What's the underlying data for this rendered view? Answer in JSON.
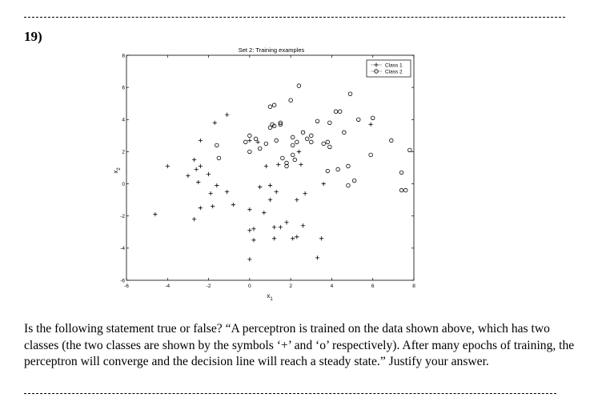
{
  "question": {
    "number": "19)",
    "text": "Is the following statement true or false? “A perceptron is trained on the data shown above, which has two classes (the two classes are shown by the symbols ‘+’ and ‘o’ respectively). After many epochs of training, the perceptron will converge and the decision line will reach a steady state.” Justify your answer."
  },
  "chart_data": {
    "type": "scatter",
    "title": "Set 2: Training examples",
    "xlabel": "x1",
    "ylabel": "x2",
    "xlim": [
      -6,
      8
    ],
    "ylim": [
      -6,
      8
    ],
    "xticks": [
      -6,
      -4,
      -2,
      0,
      2,
      4,
      6,
      8
    ],
    "yticks": [
      -6,
      -4,
      -2,
      0,
      2,
      4,
      6,
      8
    ],
    "grid": false,
    "legend": "top-right",
    "series": [
      {
        "name": "Class 1",
        "marker": "+",
        "points": [
          [
            -4.6,
            -1.9
          ],
          [
            -4.0,
            1.1
          ],
          [
            -3.0,
            0.5
          ],
          [
            -2.7,
            -2.2
          ],
          [
            -2.7,
            1.5
          ],
          [
            -2.6,
            0.9
          ],
          [
            -2.5,
            0.1
          ],
          [
            -2.4,
            -1.5
          ],
          [
            -2.4,
            2.7
          ],
          [
            -2.4,
            1.1
          ],
          [
            -2.0,
            0.6
          ],
          [
            -1.9,
            -0.6
          ],
          [
            -1.8,
            -1.4
          ],
          [
            -1.7,
            3.8
          ],
          [
            -1.6,
            -0.1
          ],
          [
            -1.1,
            4.3
          ],
          [
            -1.1,
            -0.5
          ],
          [
            -0.8,
            -1.3
          ],
          [
            0,
            -1.6
          ],
          [
            0,
            -2.9
          ],
          [
            0,
            -4.7
          ],
          [
            0.2,
            -2.8
          ],
          [
            0.2,
            -3.5
          ],
          [
            0.4,
            2.6
          ],
          [
            0.5,
            -0.2
          ],
          [
            0.7,
            -1.8
          ],
          [
            0.8,
            1.1
          ],
          [
            1.0,
            -1.0
          ],
          [
            1.0,
            -0.1
          ],
          [
            1.2,
            -2.7
          ],
          [
            1.2,
            -3.4
          ],
          [
            1.3,
            -0.5
          ],
          [
            1.4,
            1.2
          ],
          [
            1.5,
            -2.7
          ],
          [
            1.8,
            -2.4
          ],
          [
            2.1,
            -3.4
          ],
          [
            2.3,
            -3.3
          ],
          [
            2.3,
            -1.0
          ],
          [
            2.4,
            2.0
          ],
          [
            2.5,
            1.2
          ],
          [
            2.6,
            -2.6
          ],
          [
            2.7,
            -0.6
          ],
          [
            3.3,
            -4.6
          ],
          [
            3.5,
            -3.4
          ],
          [
            3.6,
            0.0
          ],
          [
            5.9,
            3.7
          ],
          [
            0.0,
            2.7
          ]
        ]
      },
      {
        "name": "Class 2",
        "marker": "o",
        "points": [
          [
            -1.6,
            2.4
          ],
          [
            -1.5,
            1.6
          ],
          [
            -0.2,
            2.6
          ],
          [
            0,
            3.0
          ],
          [
            0,
            2.0
          ],
          [
            0.3,
            2.8
          ],
          [
            0.5,
            2.2
          ],
          [
            0.8,
            2.5
          ],
          [
            1.0,
            4.8
          ],
          [
            1.0,
            3.5
          ],
          [
            1.1,
            3.7
          ],
          [
            1.2,
            4.9
          ],
          [
            1.2,
            3.6
          ],
          [
            1.3,
            2.7
          ],
          [
            1.5,
            3.8
          ],
          [
            1.5,
            3.7
          ],
          [
            1.6,
            1.6
          ],
          [
            1.8,
            1.3
          ],
          [
            1.8,
            1.1
          ],
          [
            2.0,
            5.2
          ],
          [
            2.1,
            2.9
          ],
          [
            2.1,
            2.4
          ],
          [
            2.1,
            1.8
          ],
          [
            2.2,
            1.5
          ],
          [
            2.3,
            2.6
          ],
          [
            2.4,
            6.1
          ],
          [
            2.6,
            3.2
          ],
          [
            2.8,
            2.8
          ],
          [
            3.0,
            3.0
          ],
          [
            3.0,
            2.6
          ],
          [
            3.3,
            3.9
          ],
          [
            3.6,
            2.5
          ],
          [
            3.8,
            2.6
          ],
          [
            3.9,
            2.3
          ],
          [
            3.8,
            0.8
          ],
          [
            3.9,
            3.8
          ],
          [
            4.2,
            4.5
          ],
          [
            4.3,
            0.9
          ],
          [
            4.4,
            4.5
          ],
          [
            4.6,
            3.2
          ],
          [
            4.8,
            1.1
          ],
          [
            4.8,
            -0.1
          ],
          [
            4.9,
            5.6
          ],
          [
            5.1,
            0.2
          ],
          [
            5.3,
            4.0
          ],
          [
            5.9,
            1.8
          ],
          [
            6.0,
            4.1
          ],
          [
            6.9,
            2.7
          ],
          [
            7.4,
            0.7
          ],
          [
            7.4,
            -0.4
          ],
          [
            7.6,
            -0.4
          ],
          [
            7.8,
            2.1
          ]
        ]
      }
    ]
  }
}
